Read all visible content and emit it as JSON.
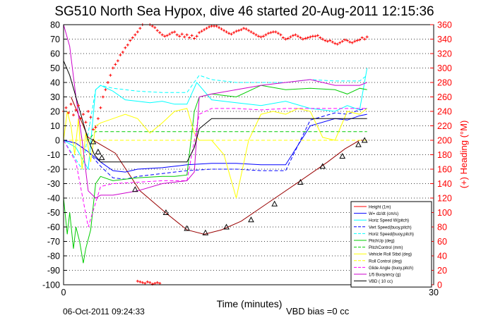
{
  "chart_data": {
    "type": "line",
    "title": "SG510 North Sea Hypox, dive 46 started 20-Aug-2011 12:15:36",
    "xlabel": "Time (minutes)",
    "ylabel": "",
    "y2label": "(+) Heading (°M)",
    "footer_left": "06-Oct-2011 09:24:33",
    "footer_right": "VBD bias =0 cc",
    "xlim": [
      0,
      30
    ],
    "ylim": [
      -100,
      80
    ],
    "y2lim": [
      0,
      360
    ],
    "x_ticks": [
      "0",
      "30"
    ],
    "y_ticks": [
      "80",
      "70",
      "60",
      "50",
      "40",
      "30",
      "20",
      "10",
      "0",
      "-10",
      "-20",
      "-30",
      "-40",
      "-50",
      "-60",
      "-70",
      "-80",
      "-90",
      "-100"
    ],
    "y2_ticks": [
      "360",
      "340",
      "320",
      "300",
      "280",
      "260",
      "240",
      "220",
      "200",
      "180",
      "160",
      "140",
      "120",
      "100",
      "80",
      "60",
      "40",
      "20",
      "0"
    ],
    "grid": "horizontal dotted",
    "legend_position": "lower-right",
    "legend": [
      {
        "label": "Height (1m)",
        "color": "#ff0000",
        "dash": "solid"
      },
      {
        "label": "W= dz/dt (cm/s)",
        "color": "#0000ff",
        "dash": "solid"
      },
      {
        "label": "Horiz Speed W(pitch)",
        "color": "#00ffff",
        "dash": "solid"
      },
      {
        "label": "Vert Speed(buoy,pitch)",
        "color": "#0000ff",
        "dash": "dashed"
      },
      {
        "label": "Horiz Speed(buoy,pitch)",
        "color": "#00ffff",
        "dash": "dashed"
      },
      {
        "label": "PitchUp (deg)",
        "color": "#00cc00",
        "dash": "solid"
      },
      {
        "label": "PitchControl (mm)",
        "color": "#00cc00",
        "dash": "dashed"
      },
      {
        "label": "Vehicle Roll Stbd (deg)",
        "color": "#ffff00",
        "dash": "solid"
      },
      {
        "label": "Roll Control (deg)",
        "color": "#ffff00",
        "dash": "dashed"
      },
      {
        "label": "Glide Angle (buoy,pitch)",
        "color": "#ff00ff",
        "dash": "dashed"
      },
      {
        "label": "1/5 Buoyancy (g)",
        "color": "#cc00cc",
        "dash": "solid"
      },
      {
        "label": "VBD ( 10 cc)",
        "color": "#000000",
        "dash": "solid"
      }
    ],
    "series": [
      {
        "name": "Height (1m)",
        "color": "#990000",
        "x": [
          0.6,
          2.0,
          4.2,
          6.2,
          8.4,
          10.0,
          11.4,
          12.8,
          14.4,
          16.8,
          19.2,
          21.4,
          22.8,
          24.0,
          24.6
        ],
        "y": [
          30,
          2,
          -9,
          -35,
          -51,
          -62,
          -65,
          -62,
          -56,
          -42,
          -28,
          -15,
          -6,
          0,
          0
        ]
      },
      {
        "name": "W= dz/dt (cm/s)",
        "color": "#0000ff",
        "x": [
          0.0,
          1.0,
          2.0,
          3.0,
          4.0,
          5.0,
          6.0,
          8.0,
          9.0,
          10.0,
          12.0,
          14.0,
          16.0,
          18.0,
          20.0,
          22.0,
          23.0,
          24.0,
          24.6
        ],
        "y": [
          0,
          -2,
          -8,
          -15,
          -21,
          -22,
          -20,
          -19,
          -18,
          -17,
          -16,
          -16,
          -17,
          -17,
          10,
          15,
          14,
          17,
          18
        ]
      },
      {
        "name": "Horiz Speed W(pitch)",
        "color": "#00ffff",
        "x": [
          0.0,
          1.0,
          2.0,
          2.6,
          3.0,
          4.0,
          5.0,
          6.0,
          7.0,
          8.0,
          9.0,
          10.0,
          10.8,
          12.0,
          14.0,
          16.0,
          18.0,
          20.0,
          22.0,
          23.0,
          24.0,
          24.6
        ],
        "y": [
          0,
          -5,
          -20,
          35,
          38,
          34,
          28,
          27,
          26,
          27,
          25,
          25,
          40,
          28,
          26,
          24,
          27,
          22,
          20,
          24,
          21,
          50
        ]
      },
      {
        "name": "Vert Speed(buoy,pitch)",
        "color": "#0000ff",
        "x": [
          0.0,
          1.0,
          2.0,
          3.0,
          4.0,
          5.0,
          6.0,
          8.0,
          9.0,
          10.0,
          12.0,
          14.0,
          16.0,
          18.0,
          20.0,
          22.0,
          23.0,
          24.0,
          24.6
        ],
        "y": [
          0,
          -2,
          -8,
          -18,
          -26,
          -27,
          -25,
          -23,
          -22,
          -21,
          -20,
          -20,
          -21,
          -21,
          14,
          19,
          18,
          21,
          22
        ]
      },
      {
        "name": "Horiz Speed(buoy,pitch)",
        "color": "#00ffff",
        "x": [
          0.0,
          1.5,
          2.6,
          3.0,
          4.0,
          6.0,
          8.0,
          10.0,
          11.0,
          12.0,
          14.0,
          16.0,
          18.0,
          20.0,
          22.0,
          24.0,
          24.6
        ],
        "y": [
          0,
          -20,
          35,
          38,
          36,
          34,
          33,
          33,
          45,
          42,
          40,
          40,
          40,
          42,
          41,
          41,
          45
        ]
      },
      {
        "name": "PitchUp (deg)",
        "color": "#00cc00",
        "x": [
          0.0,
          0.3,
          0.5,
          0.8,
          1.0,
          1.3,
          1.6,
          1.8,
          2.2,
          2.6,
          3.0,
          4.0,
          5.0,
          6.0,
          8.0,
          9.0,
          10.0,
          10.6,
          11.0,
          12.0,
          14.0,
          16.0,
          18.0,
          20.0,
          22.0,
          23.0,
          24.0,
          24.6
        ],
        "y": [
          -40,
          -65,
          -50,
          -75,
          -60,
          -70,
          -85,
          -75,
          -62,
          -30,
          -25,
          -28,
          -27,
          -26,
          -25,
          -25,
          -24,
          20,
          30,
          32,
          30,
          38,
          35,
          36,
          35,
          32,
          36,
          35
        ]
      },
      {
        "name": "PitchControl (mm)",
        "color": "#00cc00",
        "x": [
          0.0,
          2.0,
          2.6,
          10.0,
          10.4,
          24.6
        ],
        "y": [
          0,
          0,
          6,
          6,
          6,
          6
        ]
      },
      {
        "name": "Vehicle Roll Stbd (deg)",
        "color": "#ffff00",
        "x": [
          0.0,
          0.3,
          0.6,
          0.9,
          1.2,
          1.5,
          1.8,
          2.2,
          2.6,
          3.0,
          4.0,
          5.0,
          6.0,
          7.0,
          8.0,
          9.0,
          10.0,
          10.6,
          11.0,
          12.0,
          13.0,
          14.0,
          15.0,
          16.0,
          17.0,
          18.0,
          19.0,
          20.0,
          21.0,
          22.0,
          23.0,
          24.0,
          24.6
        ],
        "y": [
          0,
          20,
          10,
          -10,
          15,
          -20,
          5,
          -15,
          10,
          12,
          15,
          18,
          15,
          5,
          12,
          20,
          22,
          5,
          0,
          0,
          -10,
          -40,
          0,
          18,
          20,
          18,
          22,
          20,
          2,
          0,
          20,
          18,
          22
        ]
      },
      {
        "name": "Roll Control (deg)",
        "color": "#ffff00",
        "x": [
          0.0,
          2.0,
          2.6,
          24.6
        ],
        "y": [
          0,
          0,
          0,
          0
        ]
      },
      {
        "name": "Glide Angle (buoy,pitch)",
        "color": "#ff00ff",
        "x": [
          0.0,
          1.0,
          2.0,
          3.0,
          4.0,
          6.0,
          8.0,
          10.0,
          11.0,
          12.0,
          14.0,
          16.0,
          18.0,
          20.0,
          22.0,
          24.0,
          24.6
        ],
        "y": [
          0,
          -15,
          -60,
          -32,
          -30,
          -29,
          -28,
          -28,
          18,
          22,
          22,
          21,
          22,
          22,
          22,
          22,
          22
        ]
      },
      {
        "name": "1/5 Buoyancy (g)",
        "color": "#cc00cc",
        "x": [
          0.0,
          0.5,
          1.0,
          1.5,
          2.0,
          2.6,
          3.0,
          4.0,
          6.0,
          8.0,
          10.0,
          10.6,
          11.0,
          12.0,
          14.0,
          16.0,
          18.0,
          20.0,
          22.0,
          24.0,
          24.6
        ],
        "y": [
          80,
          65,
          30,
          0,
          -35,
          -40,
          -38,
          -38,
          -35,
          -30,
          -28,
          -22,
          30,
          32,
          35,
          38,
          40,
          42,
          38,
          38,
          40
        ]
      },
      {
        "name": "VBD ( 10 cc)",
        "color": "#000000",
        "x": [
          0.0,
          0.5,
          1.0,
          1.5,
          2.0,
          2.5,
          3.0,
          4.0,
          6.0,
          8.0,
          10.0,
          10.6,
          11.0,
          12.0,
          14.0,
          16.0,
          18.0,
          20.0,
          22.0,
          24.0,
          24.6
        ],
        "y": [
          55,
          45,
          30,
          15,
          0,
          -10,
          -15,
          -15,
          -15,
          -15,
          -15,
          -5,
          8,
          15,
          15,
          15,
          15,
          15,
          15,
          15,
          15
        ]
      }
    ],
    "heading_markers": {
      "name": "(+) Heading (°M)",
      "color": "#ff0000",
      "axis": "right",
      "x": [
        0.0,
        0.2,
        0.4,
        0.6,
        0.8,
        1.0,
        1.2,
        1.4,
        1.6,
        1.8,
        2.0,
        2.2,
        2.4,
        2.6,
        2.8,
        3.0,
        3.2,
        3.4,
        3.6,
        3.8,
        4.0,
        4.2,
        4.4,
        4.6,
        4.8,
        5.0,
        5.2,
        5.4,
        5.6,
        5.8,
        6.0,
        6.2,
        6.4,
        6.6,
        6.8,
        7.0,
        7.2,
        7.4,
        7.6,
        7.8,
        8.0,
        8.2,
        8.4,
        8.6,
        8.8,
        9.0,
        9.2,
        9.4,
        9.6,
        9.8,
        10.0,
        10.2,
        10.4,
        10.6,
        10.8,
        11.0,
        11.2,
        11.4,
        11.6,
        11.8,
        12.0,
        12.2,
        12.4,
        12.6,
        12.8,
        13.0,
        13.2,
        13.4,
        13.6,
        13.8,
        14.0,
        14.2,
        14.4,
        14.6,
        14.8,
        15.0,
        15.2,
        15.4,
        15.6,
        15.8,
        16.0,
        16.2,
        16.4,
        16.6,
        16.8,
        17.0,
        17.2,
        17.4,
        17.6,
        17.8,
        18.0,
        18.2,
        18.4,
        18.6,
        18.8,
        19.0,
        19.2,
        19.4,
        19.6,
        19.8,
        20.0,
        20.2,
        20.4,
        20.6,
        20.8,
        21.0,
        21.2,
        21.4,
        21.6,
        21.8,
        22.0,
        22.2,
        22.4,
        22.6,
        22.8,
        23.0,
        23.2,
        23.4,
        23.6,
        23.8,
        24.0,
        24.2,
        24.4,
        24.6,
        6.0,
        6.2,
        6.4,
        6.6,
        6.8,
        7.0,
        7.2,
        7.4,
        7.6,
        7.8
      ],
      "y": [
        240,
        245,
        238,
        250,
        235,
        242,
        248,
        230,
        236,
        225,
        240,
        232,
        215,
        218,
        230,
        245,
        260,
        270,
        280,
        290,
        300,
        305,
        310,
        318,
        322,
        328,
        332,
        338,
        342,
        346,
        350,
        355,
        360,
        362,
        364,
        360,
        358,
        356,
        352,
        349,
        346,
        344,
        345,
        347,
        349,
        350,
        346,
        344,
        347,
        343,
        346,
        342,
        345,
        341,
        344,
        349,
        351,
        353,
        355,
        357,
        358,
        358,
        358,
        356,
        354,
        352,
        350,
        348,
        347,
        349,
        351,
        352,
        353,
        355,
        354,
        352,
        350,
        348,
        346,
        344,
        343,
        344,
        346,
        348,
        349,
        350,
        350,
        348,
        346,
        342,
        340,
        341,
        343,
        345,
        346,
        344,
        342,
        340,
        341,
        342,
        343,
        344,
        344,
        345,
        342,
        340,
        338,
        337,
        338,
        336,
        334,
        333,
        335,
        337,
        339,
        338,
        336,
        335,
        337,
        338,
        339,
        342,
        340,
        343,
        5,
        4,
        3,
        2,
        4,
        3,
        1,
        2,
        3,
        2
      ]
    },
    "depth_triangles": {
      "color": "#000000",
      "x": [
        2.4,
        2.8,
        3.1,
        5.8,
        8.3,
        10.0,
        11.5,
        13.2,
        15.2,
        17.1,
        19.2,
        21.0,
        22.6,
        23.9,
        24.4
      ],
      "y": [
        -1,
        -8,
        -12,
        -34,
        -50,
        -61,
        -64,
        -60,
        -55,
        -44,
        -29,
        -18,
        -11,
        -3,
        0
      ]
    }
  }
}
